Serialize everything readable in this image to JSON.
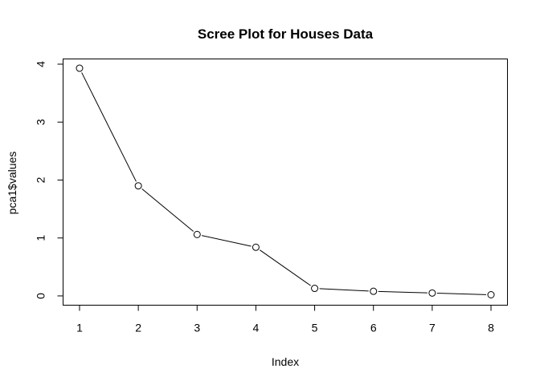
{
  "chart_data": {
    "type": "line",
    "title": "Scree Plot for Houses Data",
    "xlabel": "Index",
    "ylabel": "pca1$values",
    "x": [
      1,
      2,
      3,
      4,
      5,
      6,
      7,
      8
    ],
    "series": [
      {
        "values": [
          3.93,
          1.9,
          1.06,
          0.84,
          0.13,
          0.08,
          0.05,
          0.02
        ]
      }
    ],
    "xlim": [
      0.72,
      8.28
    ],
    "ylim": [
      -0.16,
      4.09
    ],
    "x_ticks": [
      "1",
      "2",
      "3",
      "4",
      "5",
      "6",
      "7",
      "8"
    ],
    "y_ticks": [
      "0",
      "1",
      "2",
      "3",
      "4"
    ],
    "grid": false,
    "legend": "none",
    "marker": "open-circle",
    "colors": {
      "line": "#000000",
      "marker_stroke": "#000000",
      "marker_fill": "#ffffff",
      "axis": "#000000"
    }
  }
}
